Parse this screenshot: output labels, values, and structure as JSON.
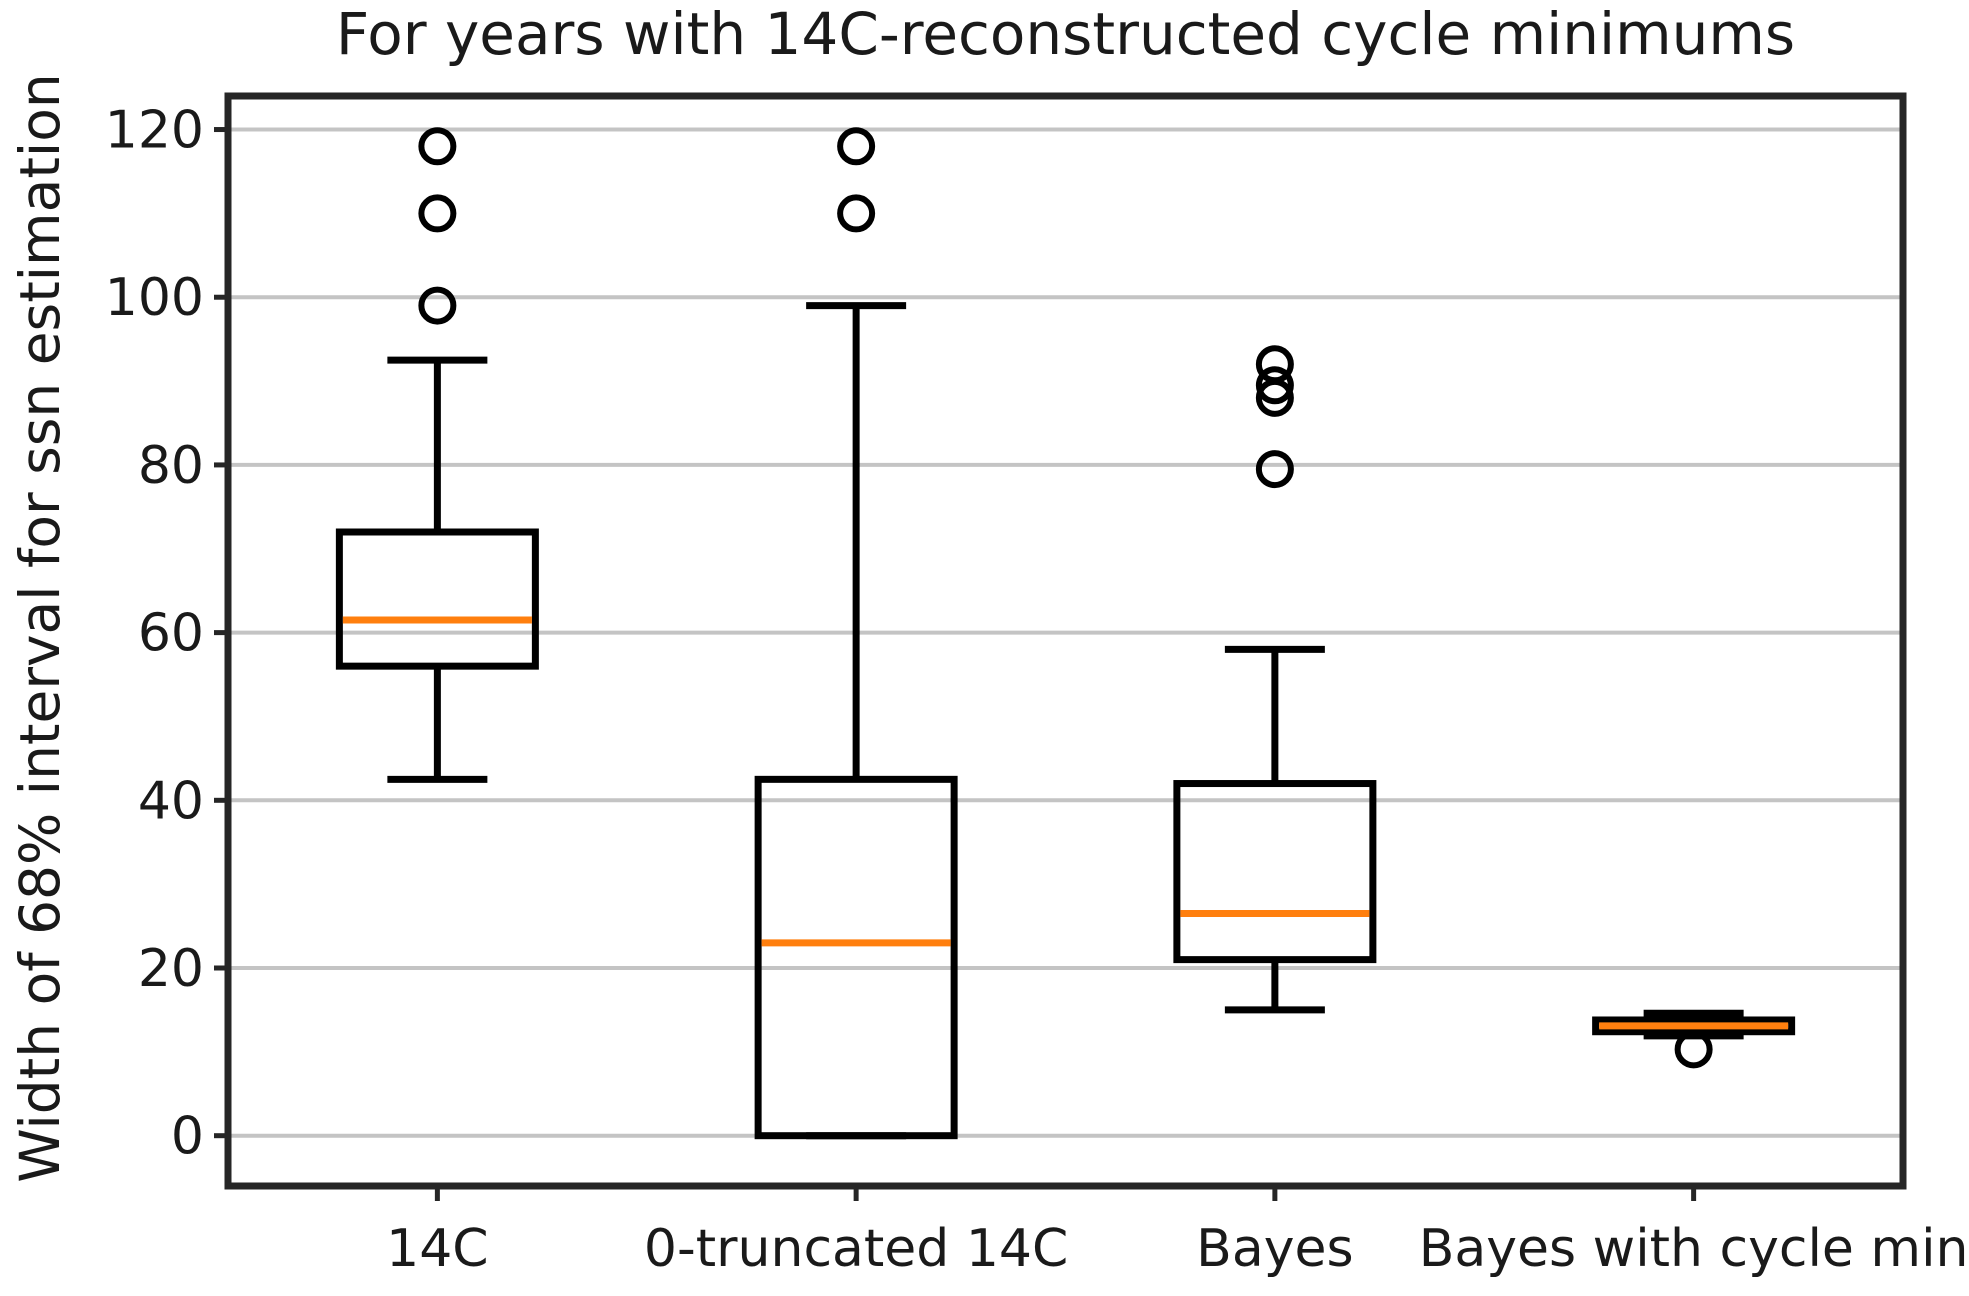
{
  "chart_data": {
    "type": "boxplot",
    "title": "For years with 14C-reconstructed cycle minimums",
    "ylabel": "Width of 68% interval for ssn estimation",
    "xlabel": "",
    "categories": [
      "14C",
      "0-truncated 14C",
      "Bayes",
      "Bayes with cycle min"
    ],
    "yticks": [
      0,
      20,
      40,
      60,
      80,
      100,
      120
    ],
    "ylim": [
      -6,
      124
    ],
    "grid": "horizontal-only",
    "legend": "none",
    "colors": {
      "median": "#ff7f0e",
      "box_line": "#000000",
      "gridline": "#c4c4c4",
      "spine": "#262626",
      "text": "#1a1a1a",
      "background": "#ffffff"
    },
    "series": [
      {
        "label": "14C",
        "whisker_low": 42.5,
        "q1": 56,
        "median": 61.5,
        "q3": 72,
        "whisker_high": 92.5,
        "outliers": [
          99,
          110,
          118
        ]
      },
      {
        "label": "0-truncated 14C",
        "whisker_low": 0,
        "q1": 0,
        "median": 23,
        "q3": 42.5,
        "whisker_high": 99,
        "outliers": [
          110,
          118
        ]
      },
      {
        "label": "Bayes",
        "whisker_low": 15,
        "q1": 21,
        "median": 26.5,
        "q3": 42,
        "whisker_high": 58,
        "outliers": [
          79.5,
          88,
          89.5,
          92
        ]
      },
      {
        "label": "Bayes with cycle min",
        "whisker_low": 11.9,
        "q1": 12.4,
        "median": 13.1,
        "q3": 13.8,
        "whisker_high": 14.6,
        "outliers": [
          10.3
        ]
      }
    ]
  }
}
